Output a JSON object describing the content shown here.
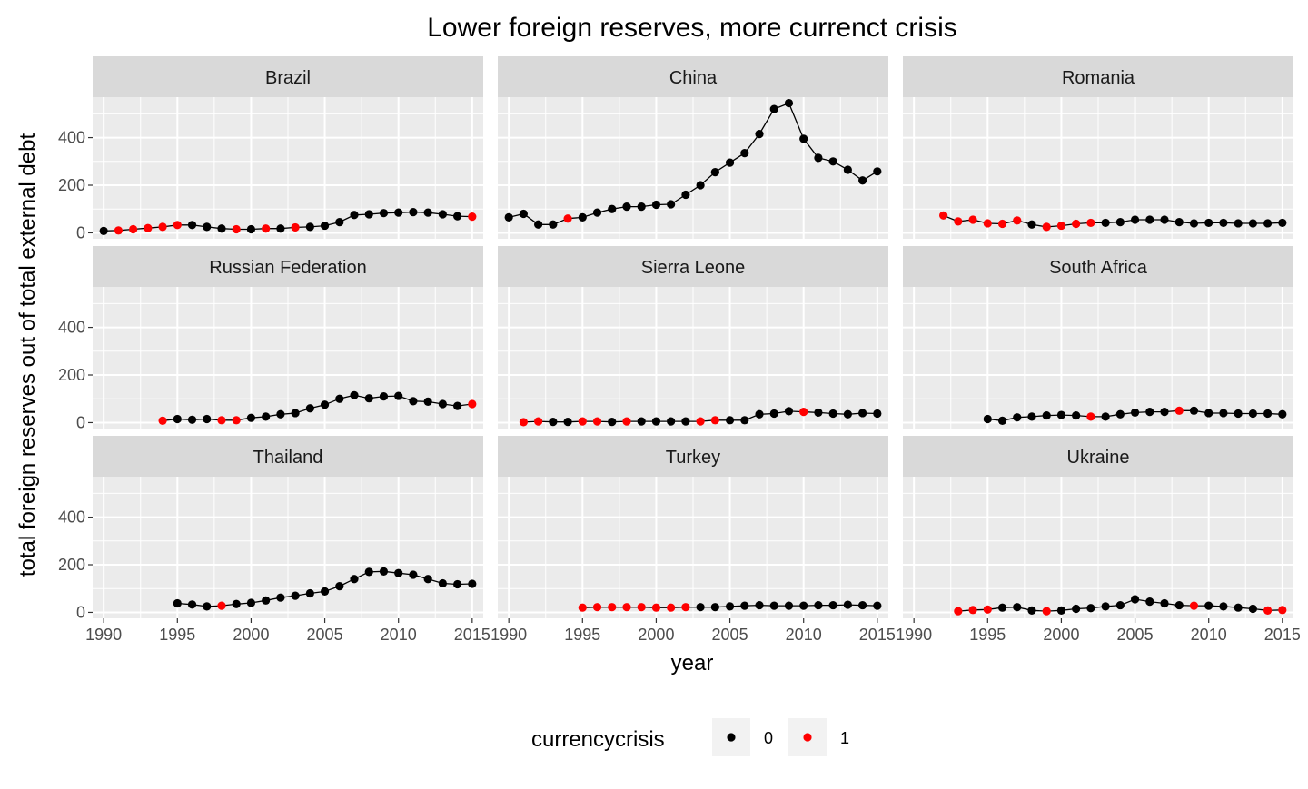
{
  "chart_data": {
    "type": "scatter",
    "title": "Lower foreign reserves, more currenct crisis",
    "xlabel": "year",
    "ylabel": "total foreign reserves out of total external debt",
    "xlim": [
      1989.25,
      2015.75
    ],
    "ylim": [
      -25,
      570
    ],
    "x_ticks": [
      1990,
      1995,
      2000,
      2005,
      2010,
      2015
    ],
    "y_ticks": [
      0,
      200,
      400
    ],
    "grid": true,
    "legend": {
      "title": "currencycrisis",
      "position": "bottom",
      "entries": [
        {
          "label": "0",
          "color": "#000000"
        },
        {
          "label": "1",
          "color": "#ff0000"
        }
      ]
    },
    "colors": {
      "0": "#000000",
      "1": "#ff0000"
    },
    "facets": [
      {
        "name": "Brazil",
        "points": [
          [
            1990,
            8,
            0
          ],
          [
            1991,
            10,
            1
          ],
          [
            1992,
            15,
            1
          ],
          [
            1993,
            20,
            1
          ],
          [
            1994,
            25,
            1
          ],
          [
            1995,
            33,
            1
          ],
          [
            1996,
            33,
            0
          ],
          [
            1997,
            25,
            0
          ],
          [
            1998,
            18,
            0
          ],
          [
            1999,
            15,
            1
          ],
          [
            2000,
            15,
            0
          ],
          [
            2001,
            18,
            1
          ],
          [
            2002,
            18,
            0
          ],
          [
            2003,
            23,
            1
          ],
          [
            2004,
            25,
            0
          ],
          [
            2005,
            30,
            0
          ],
          [
            2006,
            45,
            0
          ],
          [
            2007,
            75,
            0
          ],
          [
            2008,
            78,
            0
          ],
          [
            2009,
            83,
            0
          ],
          [
            2010,
            85,
            0
          ],
          [
            2011,
            87,
            0
          ],
          [
            2012,
            85,
            0
          ],
          [
            2013,
            78,
            0
          ],
          [
            2014,
            70,
            0
          ],
          [
            2015,
            68,
            1
          ]
        ]
      },
      {
        "name": "China",
        "points": [
          [
            1990,
            65,
            0
          ],
          [
            1991,
            80,
            0
          ],
          [
            1992,
            35,
            0
          ],
          [
            1993,
            35,
            0
          ],
          [
            1994,
            60,
            1
          ],
          [
            1995,
            65,
            0
          ],
          [
            1996,
            85,
            0
          ],
          [
            1997,
            100,
            0
          ],
          [
            1998,
            110,
            0
          ],
          [
            1999,
            110,
            0
          ],
          [
            2000,
            118,
            0
          ],
          [
            2001,
            120,
            0
          ],
          [
            2002,
            160,
            0
          ],
          [
            2003,
            200,
            0
          ],
          [
            2004,
            255,
            0
          ],
          [
            2005,
            295,
            0
          ],
          [
            2006,
            335,
            0
          ],
          [
            2007,
            415,
            0
          ],
          [
            2008,
            520,
            0
          ],
          [
            2009,
            545,
            0
          ],
          [
            2010,
            395,
            0
          ],
          [
            2011,
            315,
            0
          ],
          [
            2012,
            300,
            0
          ],
          [
            2013,
            265,
            0
          ],
          [
            2014,
            220,
            0
          ],
          [
            2015,
            258,
            0
          ]
        ]
      },
      {
        "name": "Romania",
        "points": [
          [
            1992,
            73,
            1
          ],
          [
            1993,
            48,
            1
          ],
          [
            1994,
            55,
            1
          ],
          [
            1995,
            40,
            1
          ],
          [
            1996,
            38,
            1
          ],
          [
            1997,
            52,
            1
          ],
          [
            1998,
            35,
            0
          ],
          [
            1999,
            25,
            1
          ],
          [
            2000,
            30,
            1
          ],
          [
            2001,
            38,
            1
          ],
          [
            2002,
            42,
            1
          ],
          [
            2003,
            42,
            0
          ],
          [
            2004,
            45,
            0
          ],
          [
            2005,
            55,
            0
          ],
          [
            2006,
            55,
            0
          ],
          [
            2007,
            55,
            0
          ],
          [
            2008,
            45,
            0
          ],
          [
            2009,
            40,
            0
          ],
          [
            2010,
            42,
            0
          ],
          [
            2011,
            42,
            0
          ],
          [
            2012,
            40,
            0
          ],
          [
            2013,
            40,
            0
          ],
          [
            2014,
            40,
            0
          ],
          [
            2015,
            42,
            0
          ]
        ]
      },
      {
        "name": "Russian Federation",
        "points": [
          [
            1994,
            8,
            1
          ],
          [
            1995,
            15,
            0
          ],
          [
            1996,
            12,
            0
          ],
          [
            1997,
            15,
            0
          ],
          [
            1998,
            10,
            1
          ],
          [
            1999,
            10,
            1
          ],
          [
            2000,
            20,
            0
          ],
          [
            2001,
            25,
            0
          ],
          [
            2002,
            35,
            0
          ],
          [
            2003,
            40,
            0
          ],
          [
            2004,
            60,
            0
          ],
          [
            2005,
            75,
            0
          ],
          [
            2006,
            100,
            0
          ],
          [
            2007,
            115,
            0
          ],
          [
            2008,
            102,
            0
          ],
          [
            2009,
            110,
            0
          ],
          [
            2010,
            112,
            0
          ],
          [
            2011,
            90,
            0
          ],
          [
            2012,
            88,
            0
          ],
          [
            2013,
            78,
            0
          ],
          [
            2014,
            70,
            0
          ],
          [
            2015,
            78,
            1
          ]
        ]
      },
      {
        "name": "Sierra Leone",
        "points": [
          [
            1991,
            2,
            1
          ],
          [
            1992,
            5,
            1
          ],
          [
            1993,
            3,
            0
          ],
          [
            1994,
            3,
            0
          ],
          [
            1995,
            5,
            1
          ],
          [
            1996,
            5,
            1
          ],
          [
            1997,
            3,
            0
          ],
          [
            1998,
            5,
            1
          ],
          [
            1999,
            5,
            0
          ],
          [
            2000,
            5,
            0
          ],
          [
            2001,
            5,
            0
          ],
          [
            2002,
            5,
            0
          ],
          [
            2003,
            5,
            1
          ],
          [
            2004,
            10,
            1
          ],
          [
            2005,
            10,
            0
          ],
          [
            2006,
            10,
            0
          ],
          [
            2007,
            35,
            0
          ],
          [
            2008,
            38,
            0
          ],
          [
            2009,
            48,
            0
          ],
          [
            2010,
            45,
            1
          ],
          [
            2011,
            42,
            0
          ],
          [
            2012,
            38,
            0
          ],
          [
            2013,
            35,
            0
          ],
          [
            2014,
            40,
            0
          ],
          [
            2015,
            38,
            0
          ]
        ]
      },
      {
        "name": "South Africa",
        "points": [
          [
            1995,
            15,
            0
          ],
          [
            1996,
            8,
            0
          ],
          [
            1997,
            22,
            0
          ],
          [
            1998,
            25,
            0
          ],
          [
            1999,
            30,
            0
          ],
          [
            2000,
            32,
            0
          ],
          [
            2001,
            30,
            0
          ],
          [
            2002,
            25,
            1
          ],
          [
            2003,
            25,
            0
          ],
          [
            2004,
            35,
            0
          ],
          [
            2005,
            42,
            0
          ],
          [
            2006,
            45,
            0
          ],
          [
            2007,
            45,
            0
          ],
          [
            2008,
            50,
            1
          ],
          [
            2009,
            50,
            0
          ],
          [
            2010,
            40,
            0
          ],
          [
            2011,
            40,
            0
          ],
          [
            2012,
            38,
            0
          ],
          [
            2013,
            38,
            0
          ],
          [
            2014,
            38,
            0
          ],
          [
            2015,
            35,
            0
          ]
        ]
      },
      {
        "name": "Thailand",
        "points": [
          [
            1995,
            38,
            0
          ],
          [
            1996,
            33,
            0
          ],
          [
            1997,
            25,
            0
          ],
          [
            1998,
            28,
            1
          ],
          [
            1999,
            35,
            0
          ],
          [
            2000,
            40,
            0
          ],
          [
            2001,
            50,
            0
          ],
          [
            2002,
            62,
            0
          ],
          [
            2003,
            70,
            0
          ],
          [
            2004,
            80,
            0
          ],
          [
            2005,
            88,
            0
          ],
          [
            2006,
            110,
            0
          ],
          [
            2007,
            140,
            0
          ],
          [
            2008,
            170,
            0
          ],
          [
            2009,
            172,
            0
          ],
          [
            2010,
            165,
            0
          ],
          [
            2011,
            158,
            0
          ],
          [
            2012,
            140,
            0
          ],
          [
            2013,
            122,
            0
          ],
          [
            2014,
            118,
            0
          ],
          [
            2015,
            120,
            0
          ]
        ]
      },
      {
        "name": "Turkey",
        "points": [
          [
            1995,
            20,
            1
          ],
          [
            1996,
            22,
            1
          ],
          [
            1997,
            22,
            1
          ],
          [
            1998,
            22,
            1
          ],
          [
            1999,
            22,
            1
          ],
          [
            2000,
            20,
            1
          ],
          [
            2001,
            20,
            1
          ],
          [
            2002,
            22,
            1
          ],
          [
            2003,
            22,
            0
          ],
          [
            2004,
            22,
            0
          ],
          [
            2005,
            25,
            0
          ],
          [
            2006,
            28,
            0
          ],
          [
            2007,
            30,
            0
          ],
          [
            2008,
            28,
            0
          ],
          [
            2009,
            28,
            0
          ],
          [
            2010,
            28,
            0
          ],
          [
            2011,
            30,
            0
          ],
          [
            2012,
            30,
            0
          ],
          [
            2013,
            32,
            0
          ],
          [
            2014,
            30,
            0
          ],
          [
            2015,
            28,
            0
          ]
        ]
      },
      {
        "name": "Ukraine",
        "points": [
          [
            1993,
            5,
            1
          ],
          [
            1994,
            10,
            1
          ],
          [
            1995,
            12,
            1
          ],
          [
            1996,
            20,
            0
          ],
          [
            1997,
            22,
            0
          ],
          [
            1998,
            8,
            0
          ],
          [
            1999,
            5,
            1
          ],
          [
            2000,
            8,
            0
          ],
          [
            2001,
            15,
            0
          ],
          [
            2002,
            18,
            0
          ],
          [
            2003,
            25,
            0
          ],
          [
            2004,
            30,
            0
          ],
          [
            2005,
            55,
            0
          ],
          [
            2006,
            45,
            0
          ],
          [
            2007,
            38,
            0
          ],
          [
            2008,
            30,
            0
          ],
          [
            2009,
            28,
            1
          ],
          [
            2010,
            28,
            0
          ],
          [
            2011,
            25,
            0
          ],
          [
            2012,
            20,
            0
          ],
          [
            2013,
            15,
            0
          ],
          [
            2014,
            8,
            1
          ],
          [
            2015,
            10,
            1
          ]
        ]
      }
    ]
  }
}
